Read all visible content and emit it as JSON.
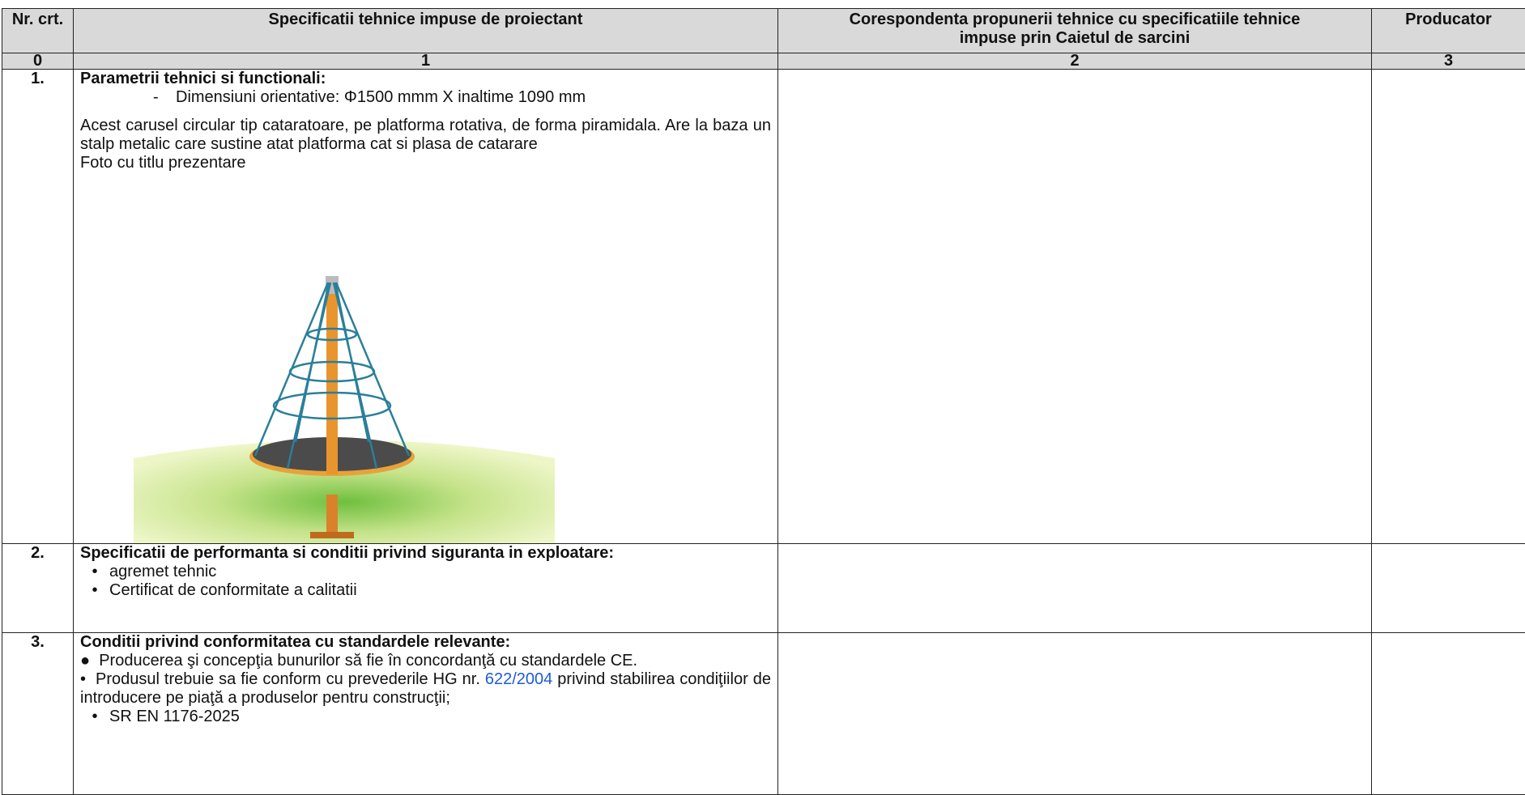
{
  "table": {
    "header": {
      "nr": "Nr. crt.",
      "col1": "Specificatii tehnice impuse de proiectant",
      "col2_lines": [
        "Corespondenta propunerii tehnice cu specificatiile tehnice",
        "impuse prin Caietul de sarcini"
      ],
      "col3": "Producator"
    },
    "column_numbers": [
      "0",
      "1",
      "2",
      "3"
    ],
    "rows": [
      {
        "nr": "1.",
        "title": "Parametrii tehnici si functionali:",
        "dash_item": "Dimensiuni orientative: Φ1500 mmm X inaltime 1090 mm",
        "paragraph": "Acest carusel circular tip cataratoare, pe platforma rotativa, de forma piramidala. Are la baza un stalp metalic care sustine atat platforma cat si plasa de catarare",
        "caption": "Foto cu titlu prezentare"
      },
      {
        "nr": "2.",
        "title": "Specificatii de performanta si conditii privind siguranta in exploatare:",
        "bullets": [
          "agremet tehnic",
          "Certificat de conformitate a calitatii"
        ]
      },
      {
        "nr": "3.",
        "title": "Conditii privind conformitatea cu standardele relevante:",
        "item1": "Producerea şi concepţia bunurilor să fie în concordanţă cu standardele CE.",
        "item2": {
          "before": "Produsul trebuie sa fie conform cu prevederile HG nr. ",
          "link": "622/2004",
          "after": " privind stabilirea condiţiilor de introducere pe piaţă a produselor pentru construcţii;"
        },
        "item3": "SR EN 1176-2025"
      }
    ]
  }
}
